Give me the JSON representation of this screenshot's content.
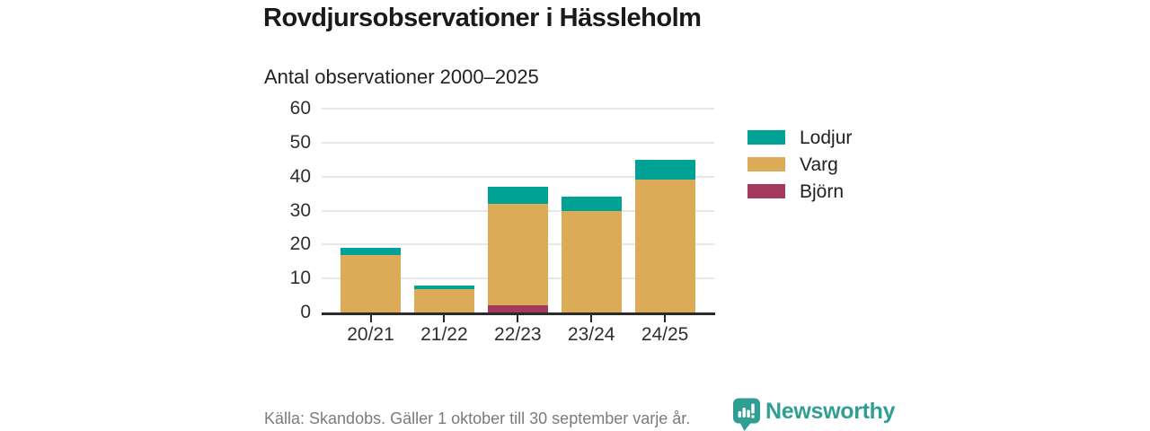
{
  "chart_data": {
    "type": "bar",
    "stacked": true,
    "title": "Rovdjursobservationer i Hässleholm",
    "subtitle": "Antal observationer 2000–2025",
    "categories": [
      "20/21",
      "21/22",
      "22/23",
      "23/24",
      "24/25"
    ],
    "series": [
      {
        "name": "Lodjur",
        "color": "#00a296",
        "values": [
          2,
          1,
          5,
          4,
          6
        ]
      },
      {
        "name": "Varg",
        "color": "#dbab58",
        "values": [
          17,
          7,
          30,
          30,
          39
        ]
      },
      {
        "name": "Björn",
        "color": "#a23a5e",
        "values": [
          0,
          0,
          2,
          0,
          0
        ]
      }
    ],
    "totals": [
      19,
      8,
      37,
      34,
      45
    ],
    "xlabel": "",
    "ylabel": "",
    "ylim": [
      0,
      60
    ],
    "yticks": [
      0,
      10,
      20,
      30,
      40,
      50,
      60
    ],
    "grid": "horizontal",
    "legend_position": "right"
  },
  "footer": {
    "source": "Källa: Skandobs. Gäller 1 oktober till 30 september varje år.",
    "brand": "Newsworthy"
  },
  "colors": {
    "title_text": "#1a1a1a",
    "axis_text": "#2f2f2f",
    "gridline": "#e7e7e7",
    "axis_line": "#2b2b2b",
    "source_text": "#7b7b7b",
    "brand_teal": "#2f9e93"
  }
}
